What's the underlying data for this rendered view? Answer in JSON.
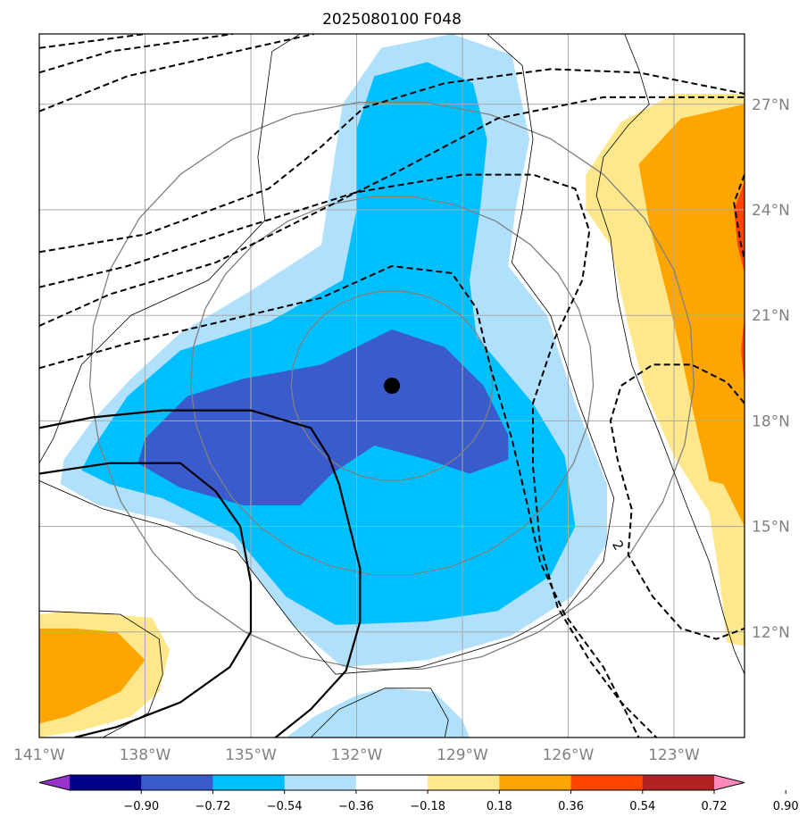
{
  "chart_data": {
    "type": "contour map",
    "title": "2025080100 F048",
    "x_ticks": [
      {
        "value": -141,
        "label": "141°W"
      },
      {
        "value": -138,
        "label": "138°W"
      },
      {
        "value": -135,
        "label": "135°W"
      },
      {
        "value": -132,
        "label": "132°W"
      },
      {
        "value": -129,
        "label": "129°W"
      },
      {
        "value": -126,
        "label": "126°W"
      },
      {
        "value": -123,
        "label": "123°W"
      }
    ],
    "y_ticks": [
      {
        "value": 12,
        "label": "12°N"
      },
      {
        "value": 15,
        "label": "15°N"
      },
      {
        "value": 18,
        "label": "18°N"
      },
      {
        "value": 21,
        "label": "21°N"
      },
      {
        "value": 24,
        "label": "24°N"
      },
      {
        "value": 27,
        "label": "27°N"
      }
    ],
    "xlim": [
      -141,
      -121
    ],
    "ylim": [
      9,
      29
    ],
    "grid": true,
    "center": {
      "lon": -131.0,
      "lat": 19.0
    },
    "range_rings_deg": [
      2.7,
      5.4,
      8.1
    ],
    "contour_label": "2",
    "colorbar": {
      "levels": [
        "-0.90",
        "-0.72",
        "-0.54",
        "-0.36",
        "-0.18",
        "0.18",
        "0.36",
        "0.54",
        "0.72",
        "0.90"
      ],
      "colors": [
        "#9932cc",
        "#00008b",
        "#3a5bcc",
        "#00bfff",
        "#b0e0fc",
        "#ffffff",
        "#ffe88c",
        "#ffa500",
        "#ff4500",
        "#b22222",
        "#ff88bb"
      ]
    },
    "filled_regions": [
      {
        "level": "-0.36 to -0.18",
        "color": "#b0e0fc",
        "outline": [
          [
            -140.3,
            16.9
          ],
          [
            -139.5,
            18.0
          ],
          [
            -138.4,
            19.2
          ],
          [
            -137.0,
            20.5
          ],
          [
            -135.0,
            21.7
          ],
          [
            -133.0,
            23.0
          ],
          [
            -132.7,
            25.0
          ],
          [
            -132.4,
            27.0
          ],
          [
            -131.3,
            28.6
          ],
          [
            -129.3,
            29.0
          ],
          [
            -127.6,
            28.4
          ],
          [
            -127.1,
            26.0
          ],
          [
            -127.5,
            24.0
          ],
          [
            -127.7,
            22.4
          ],
          [
            -126.6,
            21.0
          ],
          [
            -125.8,
            18.5
          ],
          [
            -124.9,
            16.2
          ],
          [
            -124.9,
            14.5
          ],
          [
            -125.9,
            13.0
          ],
          [
            -127.6,
            11.9
          ],
          [
            -130.0,
            11.2
          ],
          [
            -132.4,
            11.0
          ],
          [
            -133.9,
            12.3
          ],
          [
            -135.5,
            14.5
          ],
          [
            -137.5,
            15.2
          ],
          [
            -139.3,
            15.6
          ],
          [
            -140.4,
            16.2
          ]
        ]
      },
      {
        "level": "-0.54 to -0.36",
        "color": "#00bfff",
        "outline": [
          [
            -139.5,
            17.2
          ],
          [
            -138.5,
            18.7
          ],
          [
            -137.0,
            20.0
          ],
          [
            -134.5,
            20.8
          ],
          [
            -132.4,
            22.0
          ],
          [
            -132.0,
            24.0
          ],
          [
            -132.0,
            26.3
          ],
          [
            -131.5,
            27.8
          ],
          [
            -130.0,
            28.2
          ],
          [
            -128.7,
            27.6
          ],
          [
            -128.3,
            26.0
          ],
          [
            -128.5,
            24.0
          ],
          [
            -128.8,
            22.0
          ],
          [
            -128.6,
            20.4
          ],
          [
            -127.0,
            18.5
          ],
          [
            -126.1,
            17.0
          ],
          [
            -125.8,
            15.0
          ],
          [
            -126.5,
            13.6
          ],
          [
            -128.0,
            12.6
          ],
          [
            -130.0,
            12.3
          ],
          [
            -132.6,
            12.2
          ],
          [
            -134.0,
            13.0
          ],
          [
            -135.5,
            14.8
          ],
          [
            -137.5,
            15.8
          ],
          [
            -139.0,
            16.2
          ],
          [
            -139.8,
            16.6
          ]
        ]
      },
      {
        "level": "-0.72 to -0.54",
        "color": "#3a5bcc",
        "outline": [
          [
            -138.0,
            17.5
          ],
          [
            -136.8,
            18.7
          ],
          [
            -135.2,
            19.2
          ],
          [
            -133.0,
            19.6
          ],
          [
            -131.0,
            20.6
          ],
          [
            -129.5,
            20.1
          ],
          [
            -128.4,
            19.0
          ],
          [
            -127.7,
            17.6
          ],
          [
            -127.7,
            16.9
          ],
          [
            -128.8,
            16.5
          ],
          [
            -130.0,
            16.9
          ],
          [
            -131.5,
            17.3
          ],
          [
            -132.7,
            16.5
          ],
          [
            -133.6,
            15.6
          ],
          [
            -135.2,
            15.6
          ],
          [
            -137.0,
            16.1
          ],
          [
            -138.2,
            16.8
          ]
        ]
      },
      {
        "level": "0.18 to 0.36",
        "color": "#ffe88c",
        "outline": [
          [
            -125.5,
            25.0
          ],
          [
            -124.5,
            26.5
          ],
          [
            -123.0,
            27.3
          ],
          [
            -121.0,
            27.3
          ],
          [
            -121.0,
            11.6
          ],
          [
            -121.5,
            11.7
          ],
          [
            -121.7,
            13.5
          ],
          [
            -122.0,
            15.4
          ],
          [
            -123.0,
            17.0
          ],
          [
            -123.8,
            18.8
          ],
          [
            -124.3,
            20.7
          ],
          [
            -124.8,
            23.0
          ],
          [
            -125.5,
            24.0
          ]
        ]
      },
      {
        "level": "0.36 to 0.54",
        "color": "#ffa500",
        "outline": [
          [
            -124.0,
            25.3
          ],
          [
            -122.8,
            26.6
          ],
          [
            -121.0,
            27.0
          ],
          [
            -121.0,
            15.0
          ],
          [
            -121.6,
            16.2
          ],
          [
            -122.0,
            16.3
          ],
          [
            -122.4,
            18.0
          ],
          [
            -122.8,
            19.9
          ],
          [
            -123.2,
            21.6
          ],
          [
            -123.7,
            23.6
          ]
        ]
      },
      {
        "level": "0.54 to 0.72",
        "color": "#ff4500",
        "outline": [
          [
            -121.0,
            24.8
          ],
          [
            -121.3,
            24.0
          ],
          [
            -121.2,
            23.0
          ],
          [
            -121.0,
            22.2
          ]
        ]
      },
      {
        "level": "0.54 to 0.72",
        "color": "#ff4500",
        "outline": [
          [
            -121.0,
            21.0
          ],
          [
            -121.1,
            20.0
          ],
          [
            -121.0,
            19.0
          ]
        ]
      },
      {
        "level": "0.18 to 0.36",
        "color": "#ffe88c",
        "outline": [
          [
            -141.0,
            12.5
          ],
          [
            -140.2,
            12.6
          ],
          [
            -139.0,
            12.5
          ],
          [
            -137.8,
            12.4
          ],
          [
            -137.3,
            11.5
          ],
          [
            -137.6,
            10.3
          ],
          [
            -138.4,
            9.6
          ],
          [
            -139.8,
            9.2
          ],
          [
            -141.0,
            9.0
          ]
        ]
      },
      {
        "level": "0.36 to 0.54",
        "color": "#ffa500",
        "outline": [
          [
            -141.0,
            12.1
          ],
          [
            -140.0,
            12.1
          ],
          [
            -138.8,
            12.0
          ],
          [
            -138.0,
            11.2
          ],
          [
            -138.7,
            10.3
          ],
          [
            -140.2,
            9.6
          ],
          [
            -141.0,
            9.4
          ]
        ]
      },
      {
        "level": "-0.36 to -0.18",
        "color": "#b0e0fc",
        "outline": [
          [
            -134.0,
            9.0
          ],
          [
            -133.2,
            9.6
          ],
          [
            -132.0,
            10.2
          ],
          [
            -131.2,
            10.4
          ],
          [
            -129.8,
            10.3
          ],
          [
            -129.0,
            9.5
          ],
          [
            -128.8,
            9.0
          ]
        ]
      }
    ],
    "solid_contours": [
      [
        [
          -141.0,
          17.8
        ],
        [
          -139.5,
          18.1
        ],
        [
          -137.5,
          18.3
        ],
        [
          -135.0,
          18.3
        ],
        [
          -133.3,
          17.8
        ],
        [
          -132.8,
          17.0
        ],
        [
          -132.5,
          16.2
        ],
        [
          -132.2,
          15.0
        ],
        [
          -131.9,
          13.8
        ],
        [
          -131.9,
          12.3
        ],
        [
          -132.3,
          10.9
        ],
        [
          -133.3,
          9.8
        ],
        [
          -134.3,
          9.0
        ]
      ],
      [
        [
          -141.0,
          16.5
        ],
        [
          -139.0,
          16.8
        ],
        [
          -137.0,
          16.8
        ],
        [
          -136.0,
          16.0
        ],
        [
          -135.3,
          15.0
        ],
        [
          -135.0,
          13.4
        ],
        [
          -135.0,
          12.0
        ],
        [
          -135.6,
          11.0
        ],
        [
          -137.0,
          10.0
        ],
        [
          -138.8,
          9.3
        ],
        [
          -140.0,
          9.0
        ]
      ]
    ],
    "dashed_contours": [
      [
        [
          -141.0,
          28.6
        ],
        [
          -138.0,
          29.0
        ]
      ],
      [
        [
          -141.0,
          27.9
        ],
        [
          -139.0,
          28.5
        ],
        [
          -135.5,
          29.0
        ]
      ],
      [
        [
          -141.0,
          26.8
        ],
        [
          -138.5,
          27.8
        ],
        [
          -135.0,
          28.6
        ],
        [
          -133.2,
          29.0
        ]
      ],
      [
        [
          -141.0,
          22.8
        ],
        [
          -138.0,
          23.3
        ],
        [
          -134.5,
          24.6
        ],
        [
          -133.0,
          25.8
        ],
        [
          -131.8,
          26.9
        ],
        [
          -129.5,
          27.6
        ],
        [
          -126.5,
          28.0
        ],
        [
          -124.0,
          27.9
        ],
        [
          -121.0,
          27.3
        ]
      ],
      [
        [
          -141.0,
          20.7
        ],
        [
          -139.0,
          21.6
        ],
        [
          -136.0,
          22.5
        ],
        [
          -134.0,
          23.5
        ],
        [
          -131.0,
          25.0
        ],
        [
          -128.0,
          26.6
        ],
        [
          -125.0,
          27.2
        ],
        [
          -121.0,
          27.2
        ]
      ],
      [
        [
          -141.0,
          19.5
        ],
        [
          -138.5,
          20.2
        ],
        [
          -135.5,
          20.9
        ],
        [
          -133.0,
          21.5
        ],
        [
          -131.0,
          22.4
        ],
        [
          -129.3,
          22.2
        ],
        [
          -128.6,
          21.2
        ],
        [
          -128.2,
          19.5
        ],
        [
          -127.6,
          17.5
        ],
        [
          -127.2,
          15.8
        ],
        [
          -126.8,
          14.0
        ],
        [
          -126.1,
          12.5
        ],
        [
          -125.0,
          11.0
        ],
        [
          -124.5,
          10.0
        ],
        [
          -124.0,
          9.0
        ]
      ],
      [
        [
          -141.0,
          21.8
        ],
        [
          -138.5,
          22.4
        ],
        [
          -135.5,
          23.4
        ],
        [
          -132.0,
          24.5
        ],
        [
          -129.0,
          25.0
        ],
        [
          -127.0,
          25.0
        ],
        [
          -125.8,
          24.6
        ],
        [
          -125.4,
          23.4
        ],
        [
          -125.6,
          22.0
        ],
        [
          -126.4,
          20.3
        ],
        [
          -127.0,
          18.5
        ],
        [
          -127.0,
          16.7
        ],
        [
          -126.8,
          14.5
        ],
        [
          -126.3,
          12.7
        ],
        [
          -125.4,
          11.2
        ],
        [
          -124.5,
          10.0
        ],
        [
          -123.5,
          9.0
        ]
      ],
      [
        [
          -121.0,
          25.0
        ],
        [
          -121.3,
          24.2
        ],
        [
          -121.1,
          23.0
        ],
        [
          -121.0,
          22.6
        ]
      ],
      [
        [
          -121.0,
          18.5
        ],
        [
          -121.5,
          19.1
        ],
        [
          -122.5,
          19.6
        ],
        [
          -123.6,
          19.6
        ],
        [
          -124.5,
          19.0
        ],
        [
          -124.8,
          18.0
        ],
        [
          -124.6,
          16.9
        ],
        [
          -124.2,
          15.5
        ],
        [
          -124.3,
          14.2
        ],
        [
          -123.6,
          13.0
        ],
        [
          -122.8,
          12.1
        ],
        [
          -121.8,
          11.8
        ],
        [
          -121.0,
          12.1
        ]
      ]
    ],
    "thin_outlines": [
      [
        [
          -141.0,
          16.3
        ],
        [
          -139.2,
          15.5
        ],
        [
          -137.4,
          15.0
        ],
        [
          -135.4,
          14.3
        ],
        [
          -133.8,
          12.2
        ],
        [
          -132.6,
          10.8
        ],
        [
          -130.2,
          11.0
        ],
        [
          -127.6,
          11.8
        ],
        [
          -126.1,
          12.6
        ],
        [
          -125.0,
          14.0
        ],
        [
          -124.7,
          15.8
        ],
        [
          -125.7,
          18.5
        ],
        [
          -126.5,
          21.0
        ],
        [
          -127.6,
          22.5
        ],
        [
          -127.3,
          24.0
        ],
        [
          -127.0,
          26.0
        ],
        [
          -127.3,
          28.1
        ],
        [
          -128.3,
          29.0
        ]
      ],
      [
        [
          -133.6,
          29.0
        ],
        [
          -134.4,
          28.5
        ],
        [
          -134.6,
          27.0
        ],
        [
          -134.8,
          25.5
        ],
        [
          -134.6,
          23.7
        ],
        [
          -136.2,
          22.0
        ],
        [
          -138.4,
          21.0
        ],
        [
          -139.8,
          19.6
        ],
        [
          -140.6,
          17.5
        ],
        [
          -141.0,
          16.8
        ]
      ],
      [
        [
          -141.0,
          12.6
        ],
        [
          -138.7,
          12.5
        ],
        [
          -137.6,
          11.8
        ],
        [
          -137.5,
          10.8
        ],
        [
          -137.9,
          9.7
        ],
        [
          -139.2,
          9.0
        ]
      ],
      [
        [
          -124.4,
          29.0
        ],
        [
          -124.0,
          28.0
        ],
        [
          -123.7,
          27.0
        ],
        [
          -124.3,
          26.4
        ],
        [
          -125.0,
          25.5
        ],
        [
          -125.2,
          24.4
        ],
        [
          -124.8,
          23.2
        ],
        [
          -124.6,
          21.5
        ],
        [
          -124.2,
          19.6
        ],
        [
          -123.4,
          17.6
        ],
        [
          -122.6,
          15.5
        ],
        [
          -122.0,
          14.0
        ],
        [
          -121.6,
          12.5
        ],
        [
          -121.3,
          11.5
        ],
        [
          -121.0,
          10.8
        ]
      ],
      [
        [
          -133.3,
          9.0
        ],
        [
          -132.5,
          9.8
        ],
        [
          -131.2,
          10.4
        ],
        [
          -129.9,
          10.4
        ],
        [
          -129.4,
          9.5
        ],
        [
          -129.5,
          9.0
        ]
      ]
    ]
  }
}
